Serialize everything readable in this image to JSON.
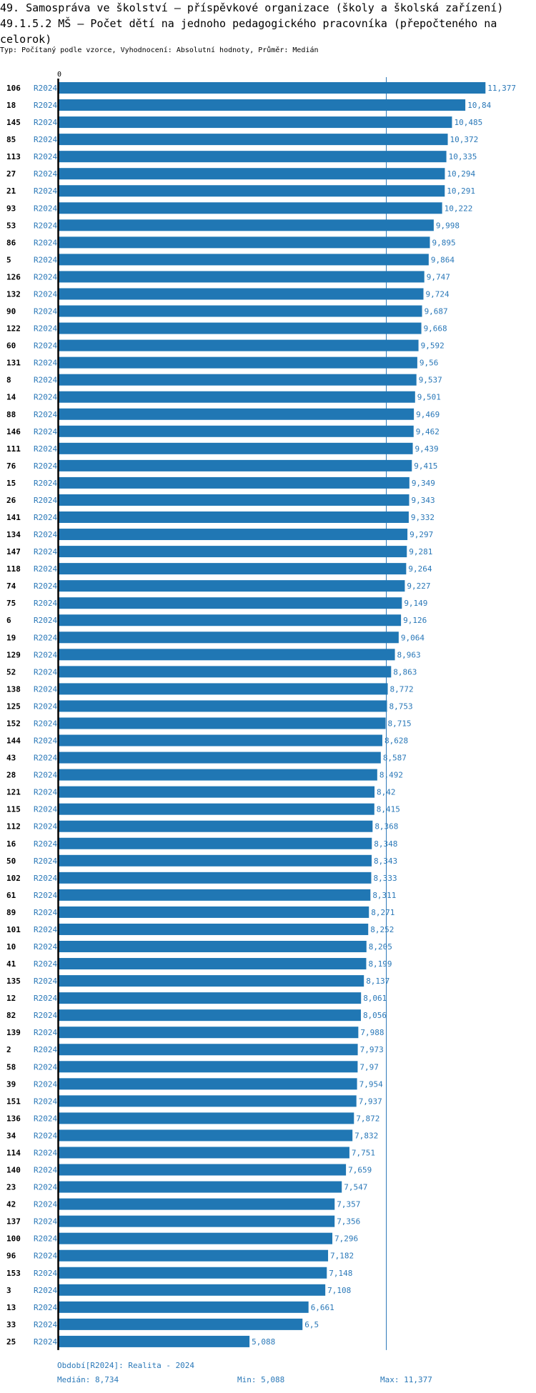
{
  "header": {
    "title_line1": "49. Samospráva ve školství – příspěvkové organizace (školy a školská zařízení)",
    "title_line2": "49.1.5.2 MŠ – Počet dětí na jednoho pedagogického pracovníka (přepočteného na celorok)",
    "subtitle": "Typ: Počítaný podle vzorce, Vyhodnocení: Absolutní hodnoty, Průměr: Medián"
  },
  "footer": {
    "period": "Období[R2024]: Realita - 2024",
    "median": "Medián: 8,734",
    "min": "Min: 5,088",
    "max": "Max: 11,377"
  },
  "colors": {
    "bar": "#2077b4",
    "label": "#2a78b8",
    "median_line": "#2a78b8"
  },
  "chart_data": {
    "type": "bar",
    "orientation": "horizontal",
    "x_tick_labels": [
      "0"
    ],
    "xlim": [
      0,
      11377
    ],
    "median": 8734,
    "series_label": "R2024",
    "categories": [
      "106",
      "18",
      "145",
      "85",
      "113",
      "27",
      "21",
      "93",
      "53",
      "86",
      "5",
      "126",
      "132",
      "90",
      "122",
      "60",
      "131",
      "8",
      "14",
      "88",
      "146",
      "111",
      "76",
      "15",
      "26",
      "141",
      "134",
      "147",
      "118",
      "74",
      "75",
      "6",
      "19",
      "129",
      "52",
      "138",
      "125",
      "152",
      "144",
      "43",
      "28",
      "121",
      "115",
      "112",
      "16",
      "50",
      "102",
      "61",
      "89",
      "101",
      "10",
      "41",
      "135",
      "12",
      "82",
      "139",
      "2",
      "58",
      "39",
      "151",
      "136",
      "34",
      "114",
      "140",
      "23",
      "42",
      "137",
      "100",
      "96",
      "153",
      "3",
      "13",
      "33",
      "25"
    ],
    "values": [
      11.377,
      10.84,
      10.485,
      10.372,
      10.335,
      10.294,
      10.291,
      10.222,
      9.998,
      9.895,
      9.864,
      9.747,
      9.724,
      9.687,
      9.668,
      9.592,
      9.56,
      9.537,
      9.501,
      9.469,
      9.462,
      9.439,
      9.415,
      9.349,
      9.343,
      9.332,
      9.297,
      9.281,
      9.264,
      9.227,
      9.149,
      9.126,
      9.064,
      8.963,
      8.863,
      8.772,
      8.753,
      8.715,
      8.628,
      8.587,
      8.492,
      8.42,
      8.415,
      8.368,
      8.348,
      8.343,
      8.333,
      8.311,
      8.271,
      8.252,
      8.205,
      8.199,
      8.137,
      8.061,
      8.056,
      7.988,
      7.973,
      7.97,
      7.954,
      7.937,
      7.872,
      7.832,
      7.751,
      7.659,
      7.547,
      7.357,
      7.356,
      7.296,
      7.182,
      7.148,
      7.108,
      6.661,
      6.5,
      5.088
    ],
    "value_labels": [
      "11,377",
      "10,84",
      "10,485",
      "10,372",
      "10,335",
      "10,294",
      "10,291",
      "10,222",
      "9,998",
      "9,895",
      "9,864",
      "9,747",
      "9,724",
      "9,687",
      "9,668",
      "9,592",
      "9,56",
      "9,537",
      "9,501",
      "9,469",
      "9,462",
      "9,439",
      "9,415",
      "9,349",
      "9,343",
      "9,332",
      "9,297",
      "9,281",
      "9,264",
      "9,227",
      "9,149",
      "9,126",
      "9,064",
      "8,963",
      "8,863",
      "8,772",
      "8,753",
      "8,715",
      "8,628",
      "8,587",
      "8,492",
      "8,42",
      "8,415",
      "8,368",
      "8,348",
      "8,343",
      "8,333",
      "8,311",
      "8,271",
      "8,252",
      "8,205",
      "8,199",
      "8,137",
      "8,061",
      "8,056",
      "7,988",
      "7,973",
      "7,97",
      "7,954",
      "7,937",
      "7,872",
      "7,832",
      "7,751",
      "7,659",
      "7,547",
      "7,357",
      "7,356",
      "7,296",
      "7,182",
      "7,148",
      "7,108",
      "6,661",
      "6,5",
      "5,088"
    ]
  }
}
